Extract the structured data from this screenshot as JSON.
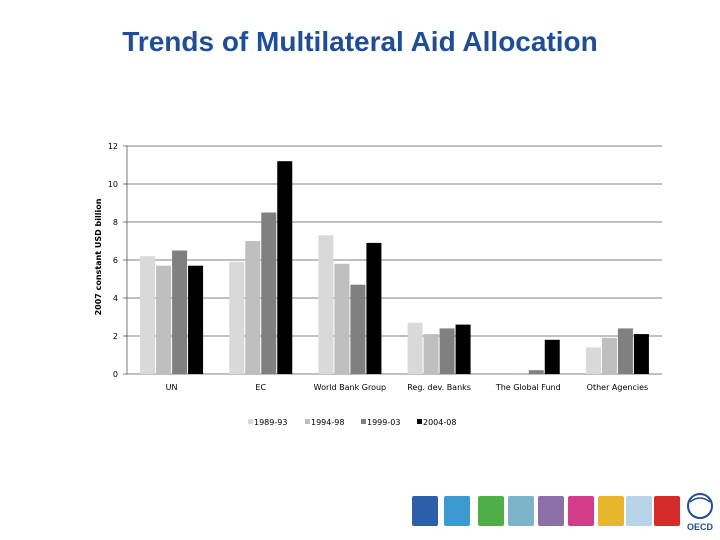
{
  "slide": {
    "title": "Trends of Multilateral Aid Allocation"
  },
  "chart_data": {
    "type": "bar",
    "title": "",
    "xlabel": "",
    "ylabel": "2007 constant USD billion",
    "ylim": [
      0,
      12
    ],
    "yticks": [
      0,
      2,
      4,
      6,
      8,
      10,
      12
    ],
    "grid": true,
    "legend_position": "bottom",
    "categories": [
      "UN",
      "EC",
      "World Bank Group",
      "Reg. dev. Banks",
      "The Global Fund",
      "Other Agencies"
    ],
    "series": [
      {
        "name": "1989-93",
        "color": "#d9d9d9",
        "values": [
          6.2,
          5.9,
          7.3,
          2.7,
          0.0,
          1.4
        ]
      },
      {
        "name": "1994-98",
        "color": "#bfbfbf",
        "values": [
          5.7,
          7.0,
          5.8,
          2.1,
          0.05,
          1.9
        ]
      },
      {
        "name": "1999-03",
        "color": "#808080",
        "values": [
          6.5,
          8.5,
          4.7,
          2.4,
          0.2,
          2.4
        ]
      },
      {
        "name": "2004-08",
        "color": "#000000",
        "values": [
          5.7,
          11.2,
          6.9,
          2.6,
          1.8,
          2.1
        ]
      }
    ]
  },
  "footer": {
    "logo_text": "OECD",
    "icons": [
      "grid-icon",
      "coin-icon",
      "glass-icon",
      "building-icon",
      "scales-icon",
      "basket-icon",
      "magnifier-icon",
      "globe-icon",
      "tomato-icon"
    ]
  }
}
